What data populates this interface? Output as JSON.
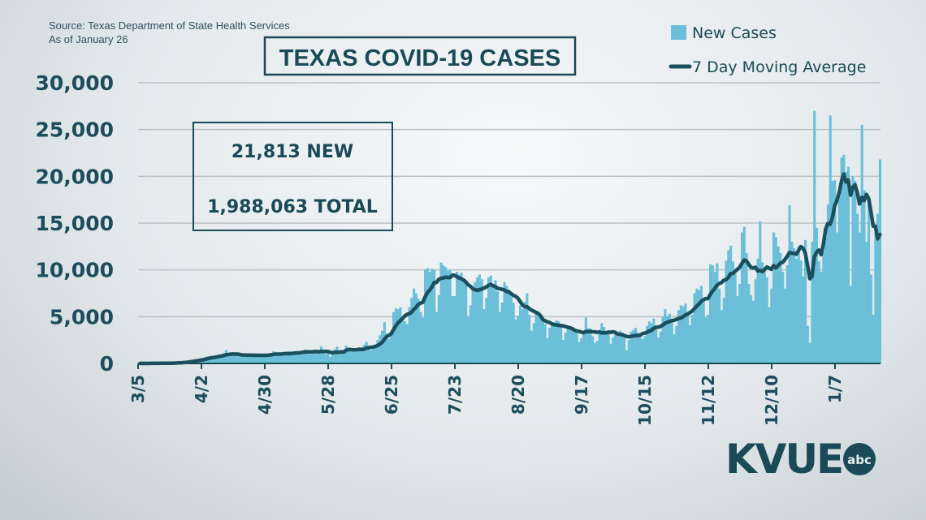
{
  "header": {
    "source": "Source: Texas Department of State Health Services",
    "as_of": "As of January 26"
  },
  "summary": {
    "new": "21,813 NEW",
    "total": "1,988,063 TOTAL"
  },
  "logo": {
    "text": "KVUE",
    "badge": "abc"
  },
  "colors": {
    "bars": "#6bbfd8",
    "line": "#1a4f5e",
    "text": "#1d4d5c",
    "grid": "#b9c0c4"
  },
  "chart_data": {
    "type": "bar",
    "title": "TEXAS COVID-19 CASES",
    "start_date": "3/5",
    "end_date": "1/26",
    "ylim": [
      0,
      30000
    ],
    "yticks": [
      "0",
      "5,000",
      "10,000",
      "15,000",
      "20,000",
      "25,000",
      "30,000"
    ],
    "ytick_values": [
      0,
      5000,
      10000,
      15000,
      20000,
      25000,
      30000
    ],
    "xticks": [
      "3/5",
      "4/2",
      "4/30",
      "5/28",
      "6/25",
      "7/23",
      "8/20",
      "9/17",
      "10/15",
      "11/12",
      "12/10",
      "1/7"
    ],
    "grid": true,
    "legend_placement": "top-right",
    "series": [
      {
        "name": "New Cases",
        "type": "bar",
        "values": [
          0,
          0,
          5,
          5,
          8,
          10,
          15,
          20,
          15,
          25,
          30,
          20,
          25,
          35,
          50,
          70,
          90,
          110,
          130,
          150,
          120,
          250,
          300,
          350,
          400,
          380,
          420,
          360,
          600,
          700,
          750,
          800,
          650,
          700,
          720,
          900,
          1000,
          1100,
          1450,
          800,
          950,
          850,
          850,
          950,
          900,
          1000,
          800,
          900,
          850,
          800,
          900,
          850,
          950,
          800,
          850,
          900,
          900,
          1000,
          1100,
          1300,
          900,
          850,
          900,
          1100,
          1200,
          1100,
          1300,
          1000,
          1050,
          1100,
          1200,
          1300,
          1400,
          1500,
          1100,
          1000,
          1200,
          1300,
          1400,
          1200,
          1800,
          1100,
          1000,
          1200,
          700,
          1000,
          1500,
          1800,
          1300,
          1100,
          1100,
          1900,
          1700,
          1500,
          1600,
          1200,
          1300,
          1400,
          1700,
          2000,
          2300,
          1900,
          1400,
          1600,
          1800,
          2500,
          3000,
          3500,
          4400,
          3200,
          2600,
          3000,
          5500,
          5900,
          5800,
          6000,
          4800,
          4500,
          4200,
          6000,
          7000,
          8000,
          7500,
          6900,
          5500,
          4900,
          10000,
          10200,
          9800,
          10100,
          10000,
          5500,
          7300,
          10800,
          10500,
          10300,
          9900,
          10000,
          7200,
          7200,
          9800,
          9500,
          9700,
          9000,
          8600,
          5000,
          6200,
          8000,
          8700,
          9200,
          9500,
          9000,
          5800,
          7000,
          9200,
          9400,
          8200,
          8900,
          7700,
          5500,
          6500,
          8700,
          8300,
          7900,
          7600,
          6500,
          4700,
          5100,
          6200,
          5800,
          6600,
          7500,
          5200,
          3500,
          4300,
          5300,
          5000,
          4800,
          4800,
          4200,
          2700,
          3800,
          4300,
          4400,
          4600,
          4500,
          4000,
          2500,
          3300,
          3800,
          4000,
          3900,
          3500,
          3200,
          2300,
          2700,
          3400,
          4900,
          3800,
          3700,
          2900,
          2200,
          2400,
          3600,
          4300,
          3900,
          3500,
          3500,
          2100,
          2800,
          3100,
          3200,
          3500,
          3300,
          2900,
          1400,
          2500,
          3400,
          3600,
          3800,
          3300,
          3100,
          2600,
          2900,
          4000,
          4500,
          4300,
          4800,
          3900,
          2800,
          3400,
          5000,
          5800,
          5100,
          5300,
          4600,
          3100,
          4000,
          5700,
          6200,
          6100,
          6400,
          5500,
          4100,
          5200,
          7500,
          8000,
          7800,
          8300,
          6800,
          4900,
          5200,
          10600,
          10500,
          9800,
          10700,
          8000,
          5700,
          7000,
          11000,
          12100,
          12600,
          10900,
          9600,
          7200,
          8500,
          14000,
          14600,
          11800,
          8500,
          7300,
          6700,
          9000,
          11200,
          15200,
          10800,
          10000,
          9200,
          6000,
          8000,
          14000,
          13500,
          12500,
          11800,
          9800,
          8000,
          10500,
          16900,
          13000,
          12300,
          11200,
          12500,
          11000,
          9300,
          13200,
          4000,
          2200,
          13000,
          27000,
          14500,
          10900,
          9800,
          12000,
          13500,
          17000,
          26500,
          19500,
          19600,
          14000,
          17800,
          22000,
          22300,
          20500,
          21000,
          8300,
          20000,
          19500,
          16000,
          14000,
          25500,
          18500,
          13000,
          17000,
          9500,
          5200,
          14000,
          16000,
          21813
        ]
      },
      {
        "name": "7 Day Moving Average",
        "type": "line",
        "derived_from": "New Cases"
      }
    ]
  }
}
